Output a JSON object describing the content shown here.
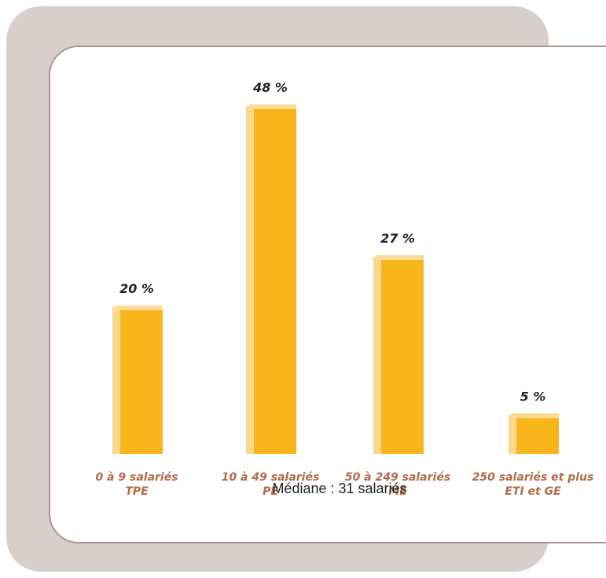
{
  "chart_data": {
    "type": "bar",
    "categories": [
      [
        "0 à 9 salariés",
        "TPE"
      ],
      [
        "10 à 49 salariés",
        "PE"
      ],
      [
        "50 à 249 salariés",
        "ME"
      ],
      [
        "250 salariés et plus",
        "ETI et GE"
      ]
    ],
    "values": [
      20,
      48,
      27,
      5
    ],
    "value_labels": [
      "20 %",
      "48 %",
      "27 %",
      "5 %"
    ],
    "ylim": [
      0,
      50
    ],
    "grid": false,
    "colors": {
      "bar": "#f9b51c",
      "bar_edge": "#fbd890",
      "bar_top": "#fcdc97"
    }
  },
  "footnote": "Médiane : 31 salariés"
}
